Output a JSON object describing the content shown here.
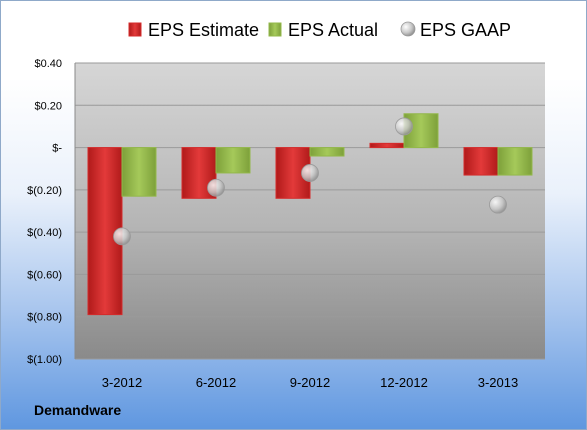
{
  "company": "Demandware",
  "colors": {
    "estimate": "#d42b2b",
    "actual": "#93b84a",
    "gaap": "#b8b8b8"
  },
  "chart_data": {
    "type": "bar",
    "categories": [
      "3-2012",
      "6-2012",
      "9-2012",
      "12-2012",
      "3-2013"
    ],
    "series": [
      {
        "name": "EPS Estimate",
        "type": "bar",
        "values": [
          -0.79,
          -0.24,
          -0.24,
          0.02,
          -0.13
        ]
      },
      {
        "name": "EPS Actual",
        "type": "bar",
        "values": [
          -0.23,
          -0.12,
          -0.04,
          0.16,
          -0.13
        ]
      },
      {
        "name": "EPS GAAP",
        "type": "scatter",
        "values": [
          -0.42,
          -0.19,
          -0.12,
          0.1,
          -0.27
        ]
      }
    ],
    "ylim": [
      -1.0,
      0.4
    ],
    "yticks": [
      0.4,
      0.2,
      0,
      -0.2,
      -0.4,
      -0.6,
      -0.8,
      -1.0
    ],
    "ytick_labels": [
      "$0.40",
      "$0.20",
      "$-",
      "$(0.20)",
      "$(0.40)",
      "$(0.60)",
      "$(0.80)",
      "$(1.00)"
    ],
    "grid": true,
    "legend": "top"
  }
}
